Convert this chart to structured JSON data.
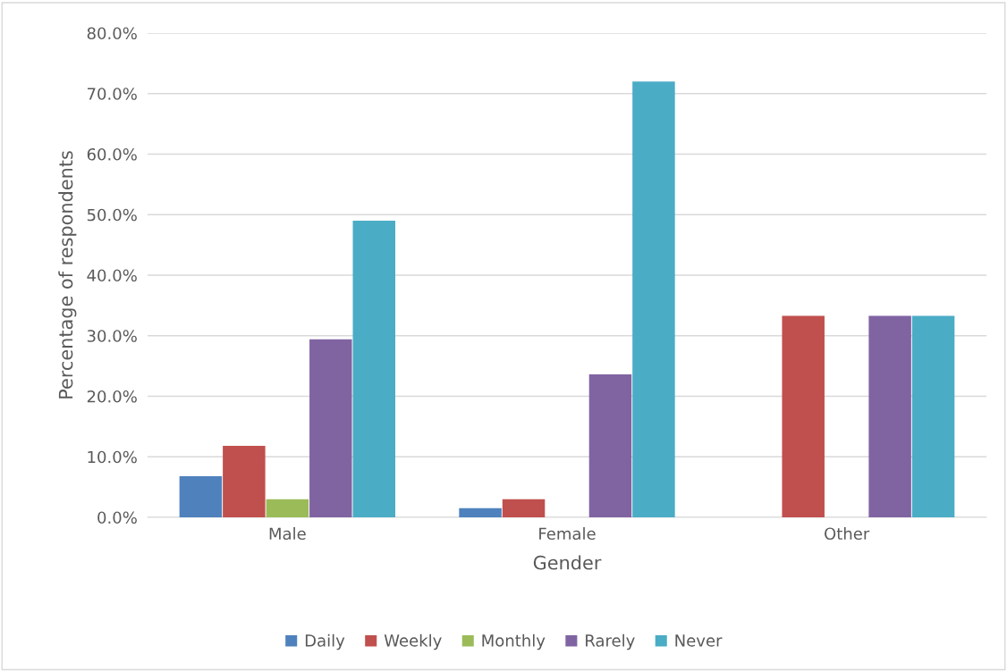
{
  "chart_data": {
    "type": "bar",
    "xlabel": "Gender",
    "ylabel": "Percentage of respondents",
    "categories": [
      "Male",
      "Female",
      "Other"
    ],
    "series": [
      {
        "name": "Daily",
        "color": "#4f81bd",
        "values": [
          6.8,
          1.5,
          0
        ]
      },
      {
        "name": "Weekly",
        "color": "#c0504d",
        "values": [
          11.8,
          3.0,
          33.3
        ]
      },
      {
        "name": "Monthly",
        "color": "#9bbb59",
        "values": [
          3.0,
          0,
          0
        ]
      },
      {
        "name": "Rarely",
        "color": "#8064a2",
        "values": [
          29.4,
          23.6,
          33.3
        ]
      },
      {
        "name": "Never",
        "color": "#4bacc6",
        "values": [
          49.0,
          72.0,
          33.3
        ]
      }
    ],
    "ylim": [
      0,
      80
    ],
    "yticks": [
      {
        "value": 0,
        "label": "0.0%"
      },
      {
        "value": 10,
        "label": "10.0%"
      },
      {
        "value": 20,
        "label": "20.0%"
      },
      {
        "value": 30,
        "label": "30.0%"
      },
      {
        "value": 40,
        "label": "40.0%"
      },
      {
        "value": 50,
        "label": "50.0%"
      },
      {
        "value": 60,
        "label": "60.0%"
      },
      {
        "value": 70,
        "label": "70.0%"
      },
      {
        "value": 80,
        "label": "80.0%"
      }
    ],
    "grid": "y",
    "legend": "bottom"
  }
}
